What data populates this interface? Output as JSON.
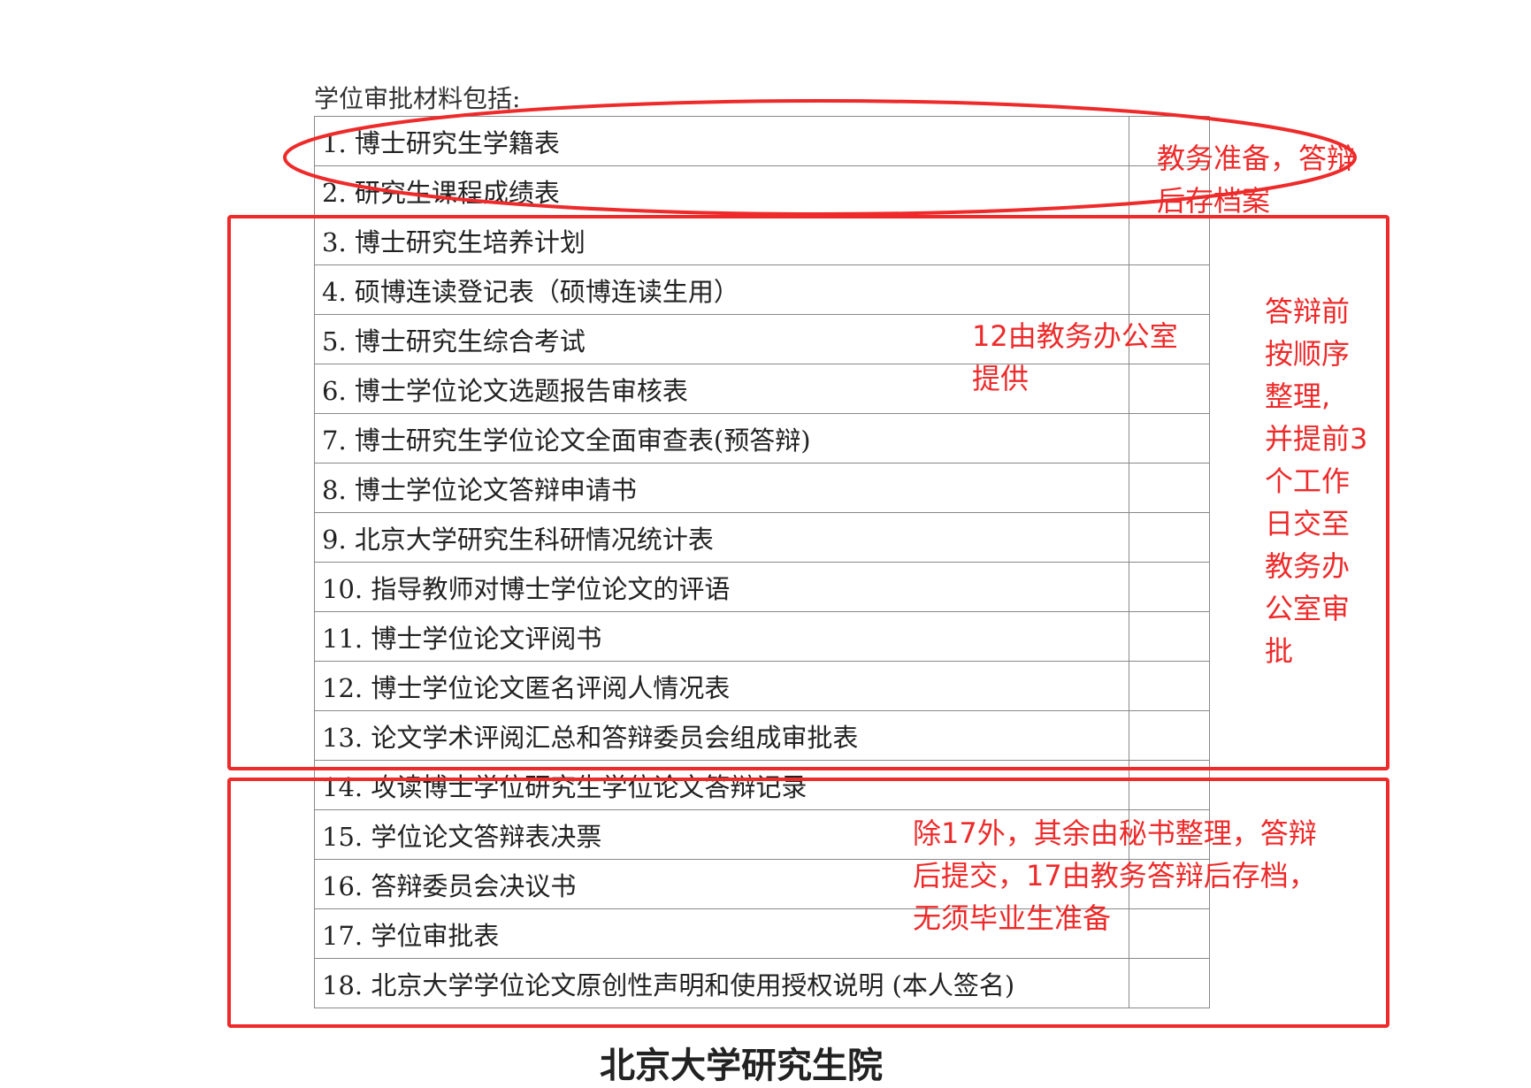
{
  "intro": "学位审批材料包括:",
  "items": [
    "1. 博士研究生学籍表",
    "2. 研究生课程成绩表",
    "3. 博士研究生培养计划",
    "4. 硕博连读登记表（硕博连读生用）",
    "5. 博士研究生综合考试",
    "6. 博士学位论文选题报告审核表",
    "7. 博士研究生学位论文全面审查表(预答辩)",
    "8. 博士学位论文答辩申请书",
    "9. 北京大学研究生科研情况统计表",
    "10. 指导教师对博士学位论文的评语",
    "11. 博士学位论文评阅书",
    "12. 博士学位论文匿名评阅人情况表",
    "13. 论文学术评阅汇总和答辩委员会组成审批表",
    "14. 攻读博士学位研究生学位论文答辩记录",
    "15. 学位论文答辩表决票",
    "16. 答辩委员会决议书",
    "17. 学位审批表",
    "18. 北京大学学位论文原创性声明和使用授权说明 (本人签名)"
  ],
  "annotations": {
    "top": [
      "教务准备，答辩",
      "后存档案"
    ],
    "office": [
      "12由教务办公室",
      "提供"
    ],
    "right": [
      "答辩前",
      "按顺序",
      "整理,",
      "并提前3",
      "个工作",
      "日交至",
      "教务办",
      "公室审",
      "批"
    ],
    "bottom": [
      "除17外，其余由秘书整理，答辩",
      "后提交，17由教务答辩后存档，",
      "无须毕业生准备"
    ]
  },
  "footer": "北京大学研究生院",
  "colors": {
    "annotation": "#ee2a2a"
  }
}
